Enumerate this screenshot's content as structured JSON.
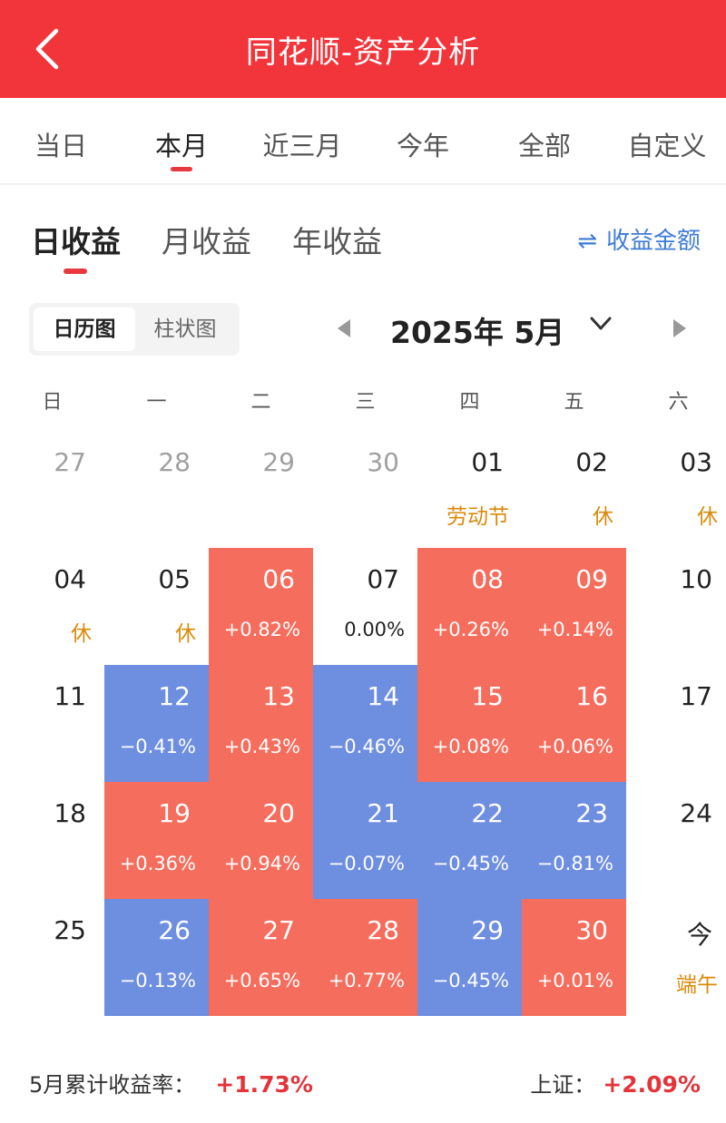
{
  "header": {
    "title": "同花顺-资产分析"
  },
  "period_tabs": [
    {
      "label": "当日"
    },
    {
      "label": "本月"
    },
    {
      "label": "近三月"
    },
    {
      "label": "今年"
    },
    {
      "label": "全部"
    },
    {
      "label": "自定义"
    }
  ],
  "earn_tabs": [
    {
      "label": "日收益"
    },
    {
      "label": "月收益"
    },
    {
      "label": "年收益"
    }
  ],
  "toggle_label": "收益金额",
  "view_switch": {
    "calendar": "日历图",
    "bar": "柱状图"
  },
  "month_label": "2025年 5月",
  "weekdays": [
    "日",
    "一",
    "二",
    "三",
    "四",
    "五",
    "六"
  ],
  "weeks": [
    [
      {
        "day": "27",
        "muted": true
      },
      {
        "day": "28",
        "muted": true
      },
      {
        "day": "29",
        "muted": true
      },
      {
        "day": "30",
        "muted": true
      },
      {
        "day": "01",
        "note": "劳动节"
      },
      {
        "day": "02",
        "note": "休"
      },
      {
        "day": "03",
        "note": "休"
      }
    ],
    [
      {
        "day": "04",
        "note": "休"
      },
      {
        "day": "05",
        "note": "休"
      },
      {
        "day": "06",
        "pct": "+0.82%",
        "trend": "up"
      },
      {
        "day": "07",
        "pct": "0.00%"
      },
      {
        "day": "08",
        "pct": "+0.26%",
        "trend": "up"
      },
      {
        "day": "09",
        "pct": "+0.14%",
        "trend": "up"
      },
      {
        "day": "10"
      }
    ],
    [
      {
        "day": "11"
      },
      {
        "day": "12",
        "pct": "−0.41%",
        "trend": "down"
      },
      {
        "day": "13",
        "pct": "+0.43%",
        "trend": "up"
      },
      {
        "day": "14",
        "pct": "−0.46%",
        "trend": "down"
      },
      {
        "day": "15",
        "pct": "+0.08%",
        "trend": "up"
      },
      {
        "day": "16",
        "pct": "+0.06%",
        "trend": "up"
      },
      {
        "day": "17"
      }
    ],
    [
      {
        "day": "18"
      },
      {
        "day": "19",
        "pct": "+0.36%",
        "trend": "up"
      },
      {
        "day": "20",
        "pct": "+0.94%",
        "trend": "up"
      },
      {
        "day": "21",
        "pct": "−0.07%",
        "trend": "down"
      },
      {
        "day": "22",
        "pct": "−0.45%",
        "trend": "down"
      },
      {
        "day": "23",
        "pct": "−0.81%",
        "trend": "down"
      },
      {
        "day": "24"
      }
    ],
    [
      {
        "day": "25"
      },
      {
        "day": "26",
        "pct": "−0.13%",
        "trend": "down"
      },
      {
        "day": "27",
        "pct": "+0.65%",
        "trend": "up"
      },
      {
        "day": "28",
        "pct": "+0.77%",
        "trend": "up"
      },
      {
        "day": "29",
        "pct": "−0.45%",
        "trend": "down"
      },
      {
        "day": "30",
        "pct": "+0.01%",
        "trend": "up"
      },
      {
        "day": "今",
        "note": "端午"
      }
    ]
  ],
  "summary": {
    "monthly_label": "5月累计收益率：",
    "monthly_value": "+1.73%",
    "index_label": "上证：",
    "index_value": "+2.09%"
  },
  "colors": {
    "header": "#f2353a",
    "up": "#f56d5c",
    "down": "#6e8ee0",
    "holiday": "#d98a0a",
    "accent": "#3f7bd6"
  }
}
